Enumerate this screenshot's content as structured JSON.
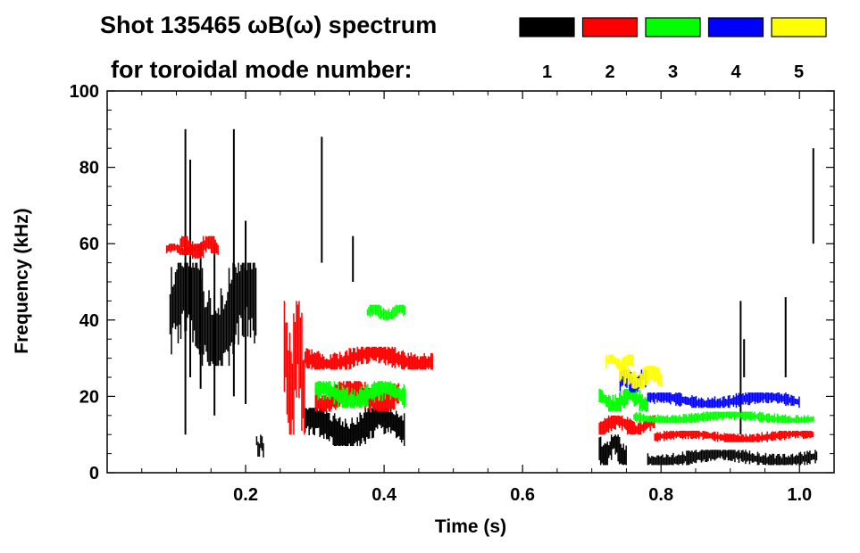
{
  "chart_data": {
    "type": "heatmap",
    "title_line1": "Shot 135465 ωB(ω) spectrum",
    "title_line2": "for toroidal mode number:",
    "xlabel": "Time (s)",
    "ylabel": "Frequency (kHz)",
    "xlim": [
      0.0,
      1.05
    ],
    "ylim": [
      0,
      100
    ],
    "x_ticks": [
      0.2,
      0.4,
      0.6,
      0.8,
      1.0
    ],
    "x_tick_labels": [
      "0.2",
      "0.4",
      "0.6",
      "0.8",
      "1.0"
    ],
    "y_ticks": [
      0,
      20,
      40,
      60,
      80,
      100
    ],
    "y_tick_labels": [
      "0",
      "20",
      "40",
      "60",
      "80",
      "100"
    ],
    "legend": [
      {
        "mode": "1",
        "color": "#000000"
      },
      {
        "mode": "2",
        "color": "#ff0000"
      },
      {
        "mode": "3",
        "color": "#00ff00"
      },
      {
        "mode": "4",
        "color": "#0000ff"
      },
      {
        "mode": "5",
        "color": "#ffff00"
      }
    ],
    "series": [
      {
        "mode": 1,
        "name": "n=1 (black)",
        "color": "#000000",
        "tracks": [
          {
            "t0": 0.09,
            "t1": 0.215,
            "f_lo": 28,
            "f_hi": 55,
            "note": "broadband burst"
          },
          {
            "t0": 0.285,
            "t1": 0.43,
            "f_lo": 7,
            "f_hi": 17,
            "note": "decaying mode"
          },
          {
            "t0": 0.215,
            "t1": 0.225,
            "f_lo": 4,
            "f_hi": 10
          },
          {
            "t0": 0.71,
            "t1": 0.75,
            "f_lo": 2,
            "f_hi": 10
          },
          {
            "t0": 0.78,
            "t1": 1.025,
            "f_lo": 2,
            "f_hi": 6
          }
        ],
        "spikes": [
          {
            "t": 0.113,
            "f_lo": 10,
            "f_hi": 90
          },
          {
            "t": 0.12,
            "f_lo": 25,
            "f_hi": 82
          },
          {
            "t": 0.183,
            "f_lo": 20,
            "f_hi": 90
          },
          {
            "t": 0.155,
            "f_lo": 15,
            "f_hi": 60
          },
          {
            "t": 0.2,
            "f_lo": 18,
            "f_hi": 66
          },
          {
            "t": 0.135,
            "f_lo": 22,
            "f_hi": 60
          },
          {
            "t": 0.31,
            "f_lo": 55,
            "f_hi": 88
          },
          {
            "t": 0.355,
            "f_lo": 50,
            "f_hi": 62
          },
          {
            "t": 0.915,
            "f_lo": 10,
            "f_hi": 45
          },
          {
            "t": 0.98,
            "f_lo": 25,
            "f_hi": 46
          },
          {
            "t": 1.02,
            "f_lo": 60,
            "f_hi": 85
          },
          {
            "t": 0.92,
            "f_lo": 25,
            "f_hi": 35
          }
        ]
      },
      {
        "mode": 2,
        "name": "n=2 (red)",
        "color": "#ff0000",
        "tracks": [
          {
            "t0": 0.085,
            "t1": 0.135,
            "f_lo": 57,
            "f_hi": 60
          },
          {
            "t0": 0.105,
            "t1": 0.16,
            "f_lo": 56,
            "f_hi": 62
          },
          {
            "t0": 0.255,
            "t1": 0.285,
            "f_lo": 10,
            "f_hi": 45,
            "note": "chirping burst"
          },
          {
            "t0": 0.285,
            "t1": 0.47,
            "f_lo": 27,
            "f_hi": 33
          },
          {
            "t0": 0.3,
            "t1": 0.42,
            "f_lo": 16,
            "f_hi": 24
          },
          {
            "t0": 0.71,
            "t1": 0.79,
            "f_lo": 10,
            "f_hi": 15
          },
          {
            "t0": 0.79,
            "t1": 1.02,
            "f_lo": 8,
            "f_hi": 11
          }
        ]
      },
      {
        "mode": 3,
        "name": "n=3 (green)",
        "color": "#00ff00",
        "tracks": [
          {
            "t0": 0.375,
            "t1": 0.43,
            "f_lo": 40,
            "f_hi": 44
          },
          {
            "t0": 0.3,
            "t1": 0.43,
            "f_lo": 17,
            "f_hi": 24
          },
          {
            "t0": 0.71,
            "t1": 0.78,
            "f_lo": 16,
            "f_hi": 22
          },
          {
            "t0": 0.76,
            "t1": 1.02,
            "f_lo": 13,
            "f_hi": 16
          }
        ]
      },
      {
        "mode": 4,
        "name": "n=4 (blue)",
        "color": "#0000ff",
        "tracks": [
          {
            "t0": 0.74,
            "t1": 0.78,
            "f_lo": 21,
            "f_hi": 27
          },
          {
            "t0": 0.78,
            "t1": 1.0,
            "f_lo": 17,
            "f_hi": 21
          }
        ]
      },
      {
        "mode": 5,
        "name": "n=5 (yellow)",
        "color": "#ffff00",
        "tracks": [
          {
            "t0": 0.72,
            "t1": 0.76,
            "f_lo": 27,
            "f_hi": 31
          },
          {
            "t0": 0.74,
            "t1": 0.8,
            "f_lo": 22,
            "f_hi": 28
          }
        ]
      }
    ]
  }
}
